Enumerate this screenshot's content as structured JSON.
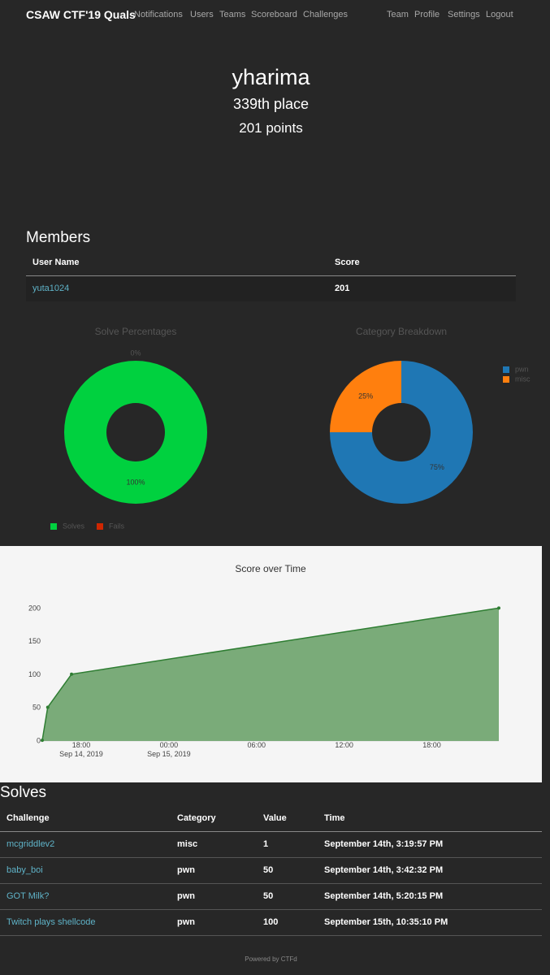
{
  "nav": {
    "brand": "CSAW CTF'19 Quals",
    "left": [
      "Notifications",
      "Users",
      "Teams",
      "Scoreboard",
      "Challenges"
    ],
    "right": [
      "Team",
      "Profile",
      "Settings",
      "Logout"
    ]
  },
  "profile": {
    "name": "yharima",
    "place": "339th place",
    "points": "201 points"
  },
  "members": {
    "title": "Members",
    "headers": [
      "User Name",
      "Score"
    ],
    "rows": [
      [
        "yuta1024",
        "201"
      ]
    ]
  },
  "chart_data": [
    {
      "type": "donut",
      "title": "Solve Percentages",
      "categories": [
        "Solves",
        "Fails"
      ],
      "values": [
        100,
        0
      ],
      "value_labels": [
        "100%",
        "0%"
      ],
      "colors": [
        "#00d13f",
        "#cf2600"
      ],
      "legend": "bottom"
    },
    {
      "type": "donut",
      "title": "Category Breakdown",
      "categories": [
        "pwn",
        "misc"
      ],
      "values": [
        75,
        25
      ],
      "value_labels": [
        "75%",
        "25%"
      ],
      "colors": [
        "#1f77b4",
        "#ff7f0e"
      ],
      "legend": "top-right"
    },
    {
      "type": "area",
      "title": "Score over Time",
      "x": [
        "2019-09-14T15:19:57",
        "2019-09-14T15:42:32",
        "2019-09-14T17:20:15",
        "2019-09-15T22:35:10"
      ],
      "values": [
        1,
        51,
        101,
        201
      ],
      "color": "#2e7d32",
      "fill": "#7aab79",
      "xlim": [
        "2019-09-14T15:19:57",
        "2019-09-15T22:35:10"
      ],
      "xticks": [
        {
          "value": "2019-09-14T18:00:00",
          "label": "18:00\nSep 14, 2019"
        },
        {
          "value": "2019-09-15T00:00:00",
          "label": "00:00\nSep 15, 2019"
        },
        {
          "value": "2019-09-15T06:00:00",
          "label": "06:00"
        },
        {
          "value": "2019-09-15T12:00:00",
          "label": "12:00"
        },
        {
          "value": "2019-09-15T18:00:00",
          "label": "18:00"
        }
      ],
      "ylim": [
        0,
        210
      ],
      "yticks": [
        0,
        50,
        100,
        150,
        200
      ]
    }
  ],
  "solves": {
    "title": "Solves",
    "headers": [
      "Challenge",
      "Category",
      "Value",
      "Time"
    ],
    "rows": [
      [
        "mcgriddlev2",
        "misc",
        "1",
        "September 14th, 3:19:57 PM"
      ],
      [
        "baby_boi",
        "pwn",
        "50",
        "September 14th, 3:42:32 PM"
      ],
      [
        "GOT Milk?",
        "pwn",
        "50",
        "September 14th, 5:20:15 PM"
      ],
      [
        "Twitch plays shellcode",
        "pwn",
        "100",
        "September 15th, 10:35:10 PM"
      ]
    ]
  },
  "footer": "Powered by CTFd"
}
